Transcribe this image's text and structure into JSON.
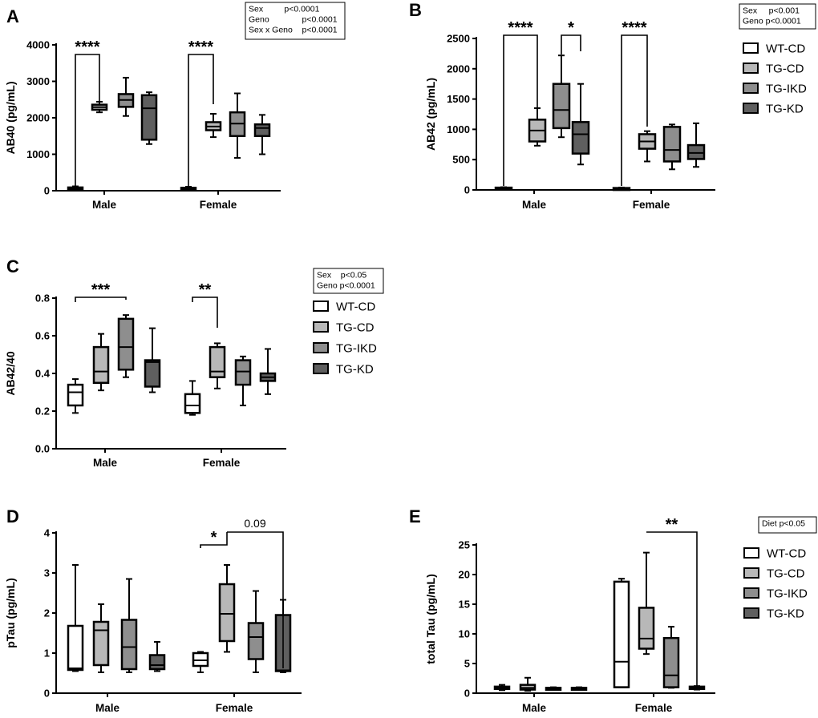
{
  "colors": {
    "WT-CD": "#ffffff",
    "TG-CD": "#b8b8b8",
    "TG-IKD": "#8e8e8e",
    "TG-KD": "#5f5f5f",
    "stroke": "#000000"
  },
  "chart_data": [
    {
      "panel": "A",
      "type": "boxplot",
      "ylabel": "AB40 (pg/mL)",
      "yticks": [
        0,
        1000,
        2000,
        3000,
        4000
      ],
      "ylim": [
        0,
        4000
      ],
      "categories": [
        "Male",
        "Female"
      ],
      "series_names": [
        "WT-CD",
        "TG-CD",
        "TG-IKD",
        "TG-KD"
      ],
      "stats_box": [
        "Sex         p<0.0001",
        "Geno              p<0.0001",
        "Sex x Geno    p<0.0001"
      ],
      "boxes": [
        {
          "group": "Male",
          "series": "WT-CD",
          "min": 30,
          "q1": 45,
          "median": 65,
          "q3": 90,
          "max": 120
        },
        {
          "group": "Male",
          "series": "TG-CD",
          "min": 2150,
          "q1": 2220,
          "median": 2290,
          "q3": 2360,
          "max": 2440
        },
        {
          "group": "Male",
          "series": "TG-IKD",
          "min": 2050,
          "q1": 2300,
          "median": 2490,
          "q3": 2650,
          "max": 3100
        },
        {
          "group": "Male",
          "series": "TG-KD",
          "min": 1280,
          "q1": 1400,
          "median": 2260,
          "q3": 2620,
          "max": 2700
        },
        {
          "group": "Female",
          "series": "WT-CD",
          "min": 25,
          "q1": 40,
          "median": 60,
          "q3": 80,
          "max": 110
        },
        {
          "group": "Female",
          "series": "TG-CD",
          "min": 1470,
          "q1": 1660,
          "median": 1760,
          "q3": 1880,
          "max": 2110
        },
        {
          "group": "Female",
          "series": "TG-IKD",
          "min": 900,
          "q1": 1500,
          "median": 1840,
          "q3": 2150,
          "max": 2670
        },
        {
          "group": "Female",
          "series": "TG-KD",
          "min": 1000,
          "q1": 1500,
          "median": 1720,
          "q3": 1820,
          "max": 2080
        }
      ],
      "significance": [
        {
          "from": "Male:WT-CD",
          "to": "Male:TG-CD",
          "label": "****"
        },
        {
          "from": "Female:WT-CD",
          "to": "Female:TG-CD",
          "label": "****"
        }
      ]
    },
    {
      "panel": "B",
      "type": "boxplot",
      "ylabel": "AB42 (pg/mL)",
      "yticks": [
        0,
        500,
        1000,
        1500,
        2000,
        2500
      ],
      "ylim": [
        0,
        2500
      ],
      "categories": [
        "Male",
        "Female"
      ],
      "series_names": [
        "WT-CD",
        "TG-CD",
        "TG-IKD",
        "TG-KD"
      ],
      "stats_box": [
        "Sex     p<0.001",
        "Geno p<0.0001"
      ],
      "legend": [
        "WT-CD",
        "TG-CD",
        "TG-IKD",
        "TG-KD"
      ],
      "boxes": [
        {
          "group": "Male",
          "series": "WT-CD",
          "min": 20,
          "q1": 25,
          "median": 30,
          "q3": 38,
          "max": 45
        },
        {
          "group": "Male",
          "series": "TG-CD",
          "min": 730,
          "q1": 800,
          "median": 980,
          "q3": 1160,
          "max": 1350
        },
        {
          "group": "Male",
          "series": "TG-IKD",
          "min": 870,
          "q1": 1020,
          "median": 1320,
          "q3": 1750,
          "max": 2220
        },
        {
          "group": "Male",
          "series": "TG-KD",
          "min": 420,
          "q1": 600,
          "median": 920,
          "q3": 1120,
          "max": 1750
        },
        {
          "group": "Female",
          "series": "WT-CD",
          "min": 15,
          "q1": 20,
          "median": 25,
          "q3": 32,
          "max": 40
        },
        {
          "group": "Female",
          "series": "TG-CD",
          "min": 470,
          "q1": 680,
          "median": 800,
          "q3": 920,
          "max": 970
        },
        {
          "group": "Female",
          "series": "TG-IKD",
          "min": 340,
          "q1": 470,
          "median": 660,
          "q3": 1040,
          "max": 1080
        },
        {
          "group": "Female",
          "series": "TG-KD",
          "min": 380,
          "q1": 510,
          "median": 610,
          "q3": 740,
          "max": 1100
        }
      ],
      "significance": [
        {
          "from": "Male:WT-CD",
          "to": "Male:TG-CD",
          "label": "****"
        },
        {
          "from": "Male:TG-IKD",
          "to": "Male:TG-KD",
          "label": "*"
        },
        {
          "from": "Female:WT-CD",
          "to": "Female:TG-CD",
          "label": "****"
        }
      ]
    },
    {
      "panel": "C",
      "type": "boxplot",
      "ylabel": "AB42/40",
      "yticks": [
        0.0,
        0.2,
        0.4,
        0.6,
        0.8
      ],
      "ylim": [
        0,
        0.8
      ],
      "tick_decimals": 1,
      "categories": [
        "Male",
        "Female"
      ],
      "series_names": [
        "WT-CD",
        "TG-CD",
        "TG-IKD",
        "TG-KD"
      ],
      "stats_box": [
        "Sex    p<0.05",
        "Geno p<0.0001"
      ],
      "legend": [
        "WT-CD",
        "TG-CD",
        "TG-IKD",
        "TG-KD"
      ],
      "boxes": [
        {
          "group": "Male",
          "series": "WT-CD",
          "min": 0.19,
          "q1": 0.23,
          "median": 0.3,
          "q3": 0.34,
          "max": 0.37
        },
        {
          "group": "Male",
          "series": "TG-CD",
          "min": 0.31,
          "q1": 0.35,
          "median": 0.41,
          "q3": 0.54,
          "max": 0.61
        },
        {
          "group": "Male",
          "series": "TG-IKD",
          "min": 0.38,
          "q1": 0.42,
          "median": 0.54,
          "q3": 0.69,
          "max": 0.71
        },
        {
          "group": "Male",
          "series": "TG-KD",
          "min": 0.3,
          "q1": 0.33,
          "median": 0.46,
          "q3": 0.47,
          "max": 0.64
        },
        {
          "group": "Female",
          "series": "WT-CD",
          "min": 0.18,
          "q1": 0.19,
          "median": 0.23,
          "q3": 0.29,
          "max": 0.36
        },
        {
          "group": "Female",
          "series": "TG-CD",
          "min": 0.32,
          "q1": 0.38,
          "median": 0.41,
          "q3": 0.54,
          "max": 0.56
        },
        {
          "group": "Female",
          "series": "TG-IKD",
          "min": 0.23,
          "q1": 0.34,
          "median": 0.41,
          "q3": 0.47,
          "max": 0.49
        },
        {
          "group": "Female",
          "series": "TG-KD",
          "min": 0.29,
          "q1": 0.36,
          "median": 0.38,
          "q3": 0.4,
          "max": 0.53
        }
      ],
      "significance": [
        {
          "from": "Male:WT-CD",
          "to": "Male:TG-IKD",
          "label": "***"
        },
        {
          "from": "Female:WT-CD",
          "to": "Female:TG-CD",
          "label": "**"
        }
      ]
    },
    {
      "panel": "D",
      "type": "boxplot",
      "ylabel": "pTau (pg/mL)",
      "yticks": [
        0,
        1,
        2,
        3,
        4
      ],
      "ylim": [
        0,
        4
      ],
      "categories": [
        "Male",
        "Female"
      ],
      "series_names": [
        "WT-CD",
        "TG-CD",
        "TG-IKD",
        "TG-KD"
      ],
      "boxes": [
        {
          "group": "Male",
          "series": "WT-CD",
          "min": 0.55,
          "q1": 0.58,
          "median": 0.62,
          "q3": 1.68,
          "max": 3.2
        },
        {
          "group": "Male",
          "series": "TG-CD",
          "min": 0.52,
          "q1": 0.7,
          "median": 1.57,
          "q3": 1.78,
          "max": 2.22
        },
        {
          "group": "Male",
          "series": "TG-IKD",
          "min": 0.52,
          "q1": 0.6,
          "median": 1.15,
          "q3": 1.83,
          "max": 2.85
        },
        {
          "group": "Male",
          "series": "TG-KD",
          "min": 0.55,
          "q1": 0.6,
          "median": 0.7,
          "q3": 0.95,
          "max": 1.28
        },
        {
          "group": "Female",
          "series": "WT-CD",
          "min": 0.52,
          "q1": 0.68,
          "median": 0.82,
          "q3": 1.0,
          "max": 1.03
        },
        {
          "group": "Female",
          "series": "TG-CD",
          "min": 1.03,
          "q1": 1.3,
          "median": 1.98,
          "q3": 2.72,
          "max": 3.2
        },
        {
          "group": "Female",
          "series": "TG-IKD",
          "min": 0.52,
          "q1": 0.85,
          "median": 1.4,
          "q3": 1.75,
          "max": 2.55
        },
        {
          "group": "Female",
          "series": "TG-KD",
          "min": 0.52,
          "q1": 0.55,
          "median": 0.57,
          "q3": 1.95,
          "max": 2.33
        }
      ],
      "significance": [
        {
          "from": "Female:WT-CD",
          "to": "Female:TG-CD",
          "label": "*"
        },
        {
          "from": "Female:TG-CD",
          "to": "Female:TG-KD",
          "label": "0.09",
          "plain": true
        }
      ]
    },
    {
      "panel": "E",
      "type": "boxplot",
      "ylabel": "total Tau (pg/mL)",
      "yticks": [
        0,
        5,
        10,
        15,
        20,
        25
      ],
      "ylim": [
        0,
        25
      ],
      "categories": [
        "Male",
        "Female"
      ],
      "series_names": [
        "WT-CD",
        "TG-CD",
        "TG-IKD",
        "TG-KD"
      ],
      "stats_box": [
        "Diet p<0.05"
      ],
      "legend": [
        "WT-CD",
        "TG-CD",
        "TG-IKD",
        "TG-KD"
      ],
      "boxes": [
        {
          "group": "Male",
          "series": "WT-CD",
          "min": 0.5,
          "q1": 0.7,
          "median": 0.9,
          "q3": 1.1,
          "max": 1.4
        },
        {
          "group": "Male",
          "series": "TG-CD",
          "min": 0.4,
          "q1": 0.6,
          "median": 0.9,
          "q3": 1.4,
          "max": 2.6
        },
        {
          "group": "Male",
          "series": "TG-IKD",
          "min": 0.6,
          "q1": 0.7,
          "median": 0.8,
          "q3": 0.9,
          "max": 1.0
        },
        {
          "group": "Male",
          "series": "TG-KD",
          "min": 0.6,
          "q1": 0.7,
          "median": 0.8,
          "q3": 0.9,
          "max": 1.0
        },
        {
          "group": "Female",
          "series": "WT-CD",
          "min": 1.0,
          "q1": 1.0,
          "median": 5.3,
          "q3": 18.8,
          "max": 19.3
        },
        {
          "group": "Female",
          "series": "TG-CD",
          "min": 6.6,
          "q1": 7.5,
          "median": 9.2,
          "q3": 14.4,
          "max": 23.7
        },
        {
          "group": "Female",
          "series": "TG-IKD",
          "min": 0.9,
          "q1": 1.0,
          "median": 3.0,
          "q3": 9.3,
          "max": 11.2
        },
        {
          "group": "Female",
          "series": "TG-KD",
          "min": 0.6,
          "q1": 0.7,
          "median": 0.9,
          "q3": 1.1,
          "max": 1.2
        }
      ],
      "significance": [
        {
          "from": "Female:TG-CD",
          "to": "Female:TG-KD",
          "label": "**"
        }
      ]
    }
  ]
}
